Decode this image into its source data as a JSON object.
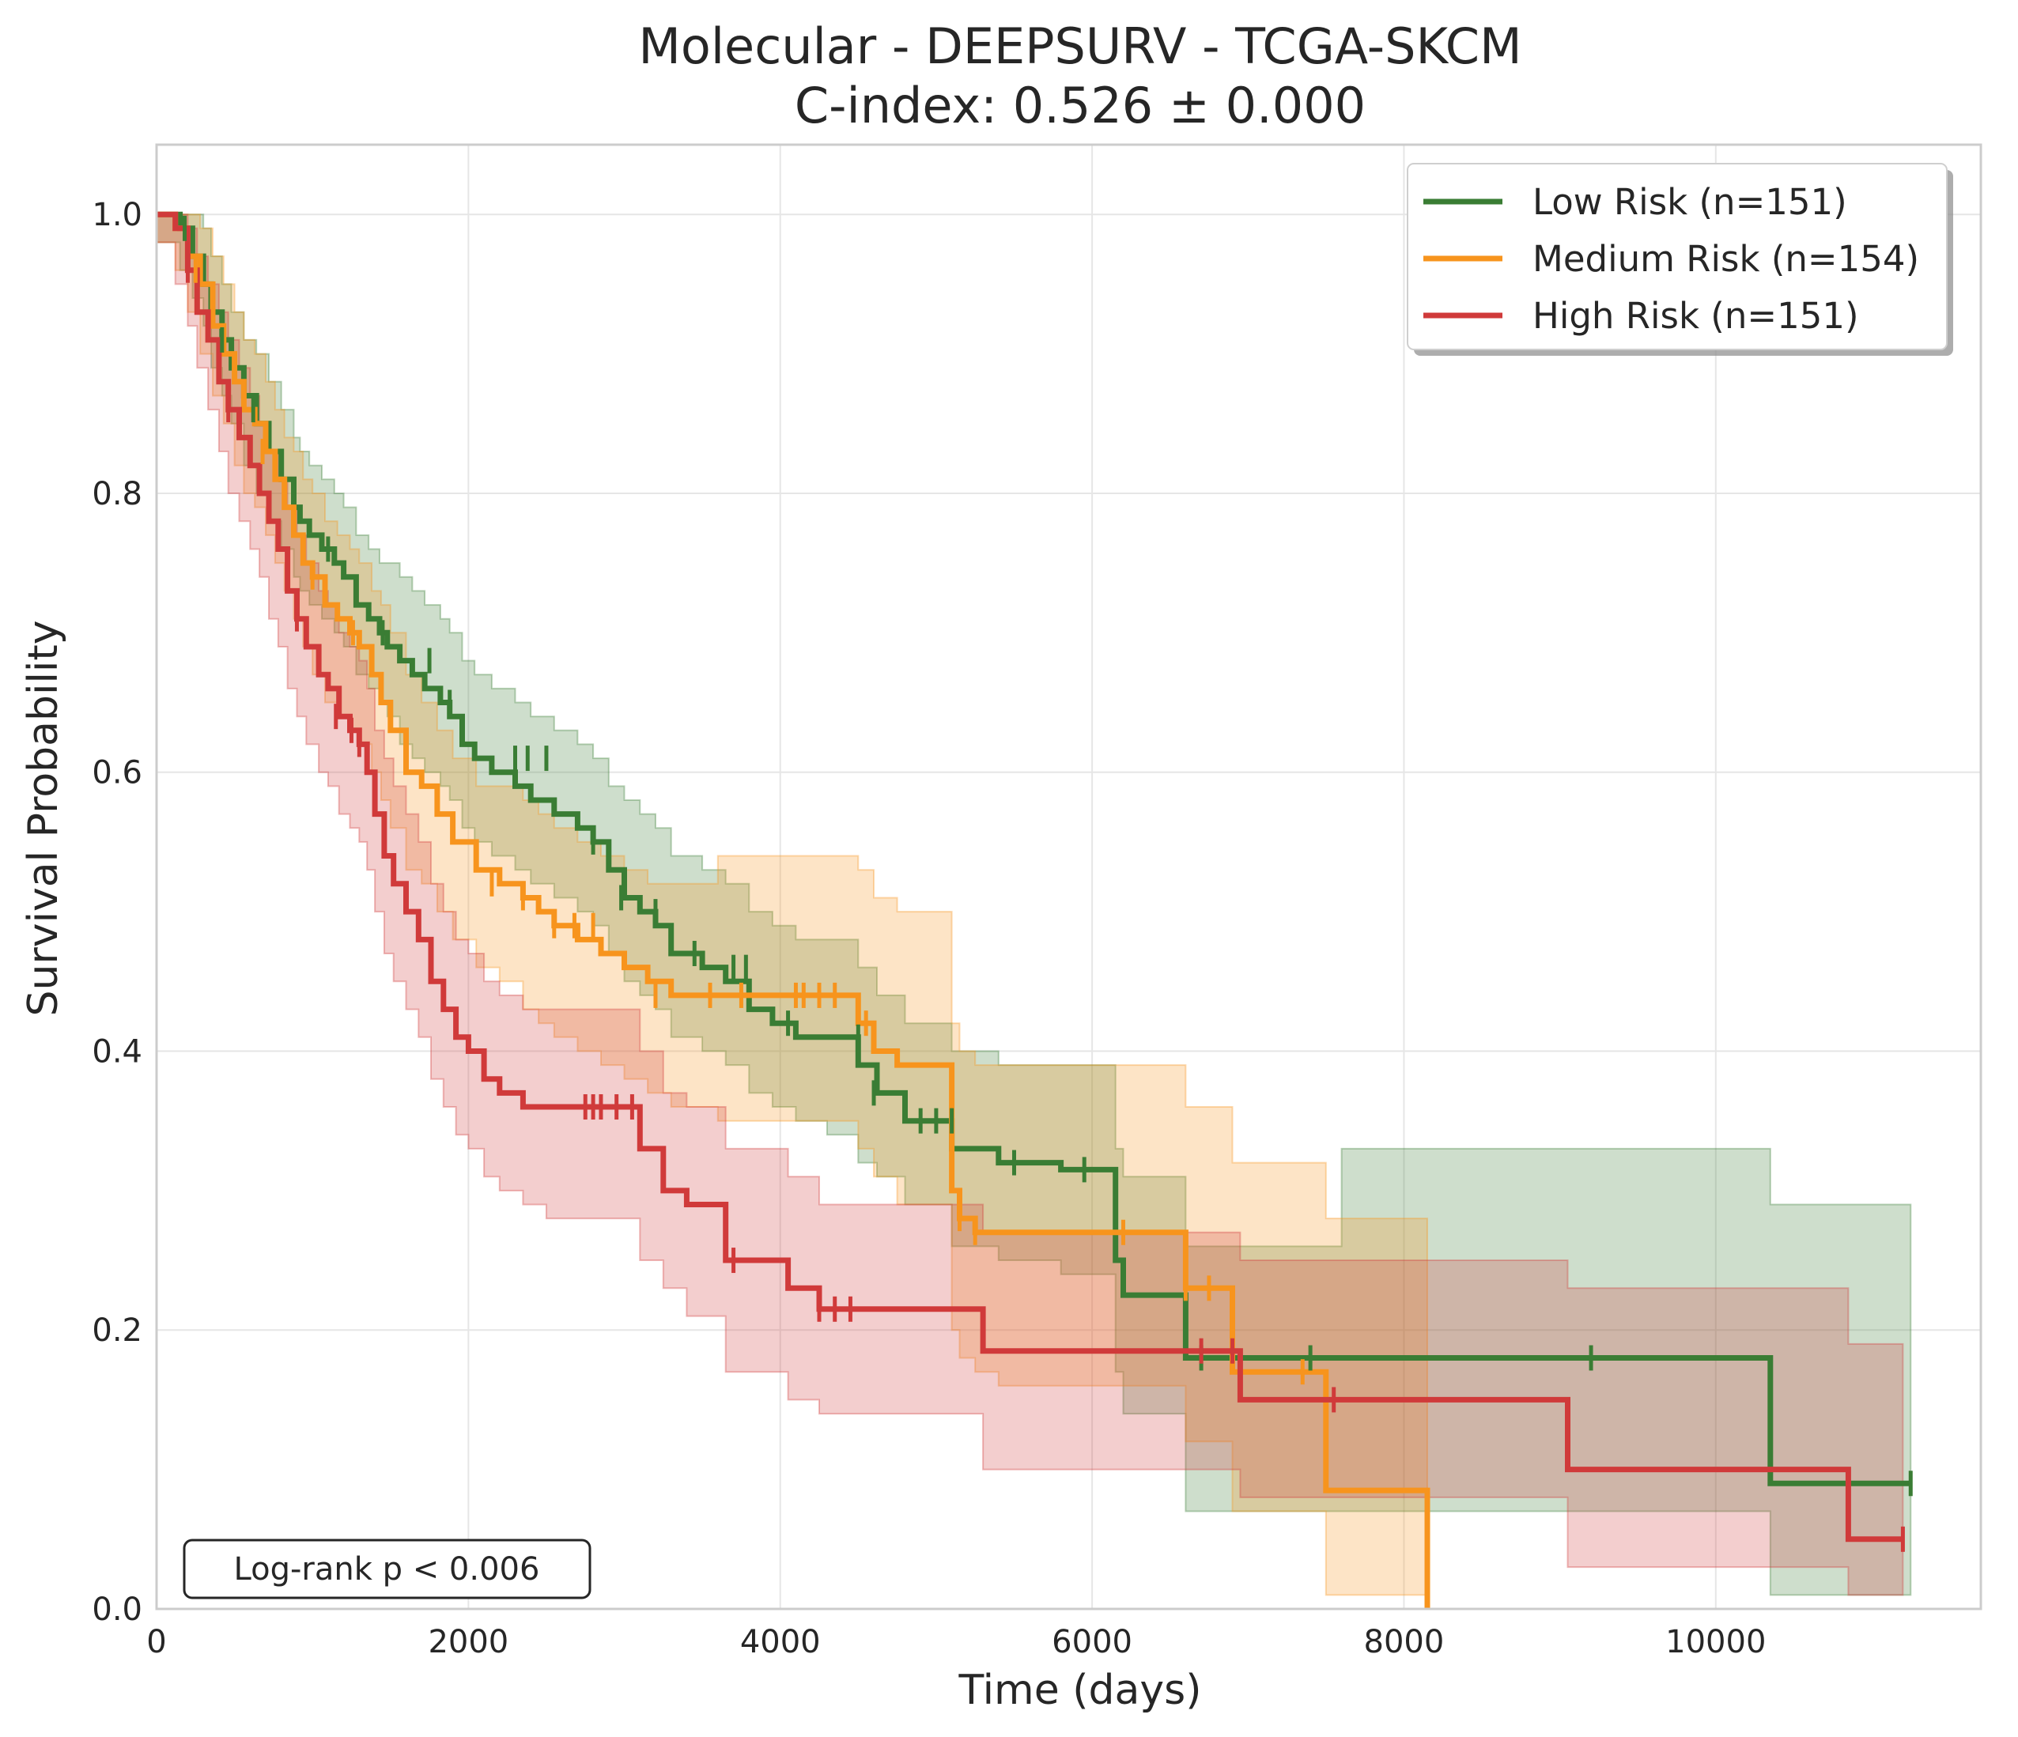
{
  "chart_data": {
    "type": "line",
    "title": "Molecular - DEEPSURV - TCGA-SKCM",
    "subtitle": "C-index: 0.526 ± 0.000",
    "xlabel": "Time (days)",
    "ylabel": "Survival Probability",
    "xlim": [
      0,
      11700
    ],
    "ylim": [
      0,
      1.05
    ],
    "x_ticks": [
      0,
      2000,
      4000,
      6000,
      8000,
      10000
    ],
    "y_ticks": [
      0.0,
      0.2,
      0.4,
      0.6,
      0.8,
      1.0
    ],
    "x_tick_labels": [
      "0",
      "2000",
      "4000",
      "6000",
      "8000",
      "10000"
    ],
    "y_tick_labels": [
      "0.0",
      "0.2",
      "0.4",
      "0.6",
      "0.8",
      "1.0"
    ],
    "grid": true,
    "legend_position": "top-right",
    "annotation": "Log-rank p < 0.006",
    "series": [
      {
        "name": "Low Risk (n=151)",
        "color": "#3a7d34",
        "step_x": [
          0,
          150,
          230,
          300,
          350,
          420,
          480,
          560,
          640,
          720,
          800,
          880,
          920,
          980,
          1060,
          1140,
          1200,
          1280,
          1360,
          1430,
          1480,
          1560,
          1640,
          1720,
          1820,
          1880,
          1960,
          2040,
          2150,
          2300,
          2400,
          2550,
          2700,
          2800,
          2900,
          3000,
          3100,
          3200,
          3300,
          3500,
          3650,
          3800,
          3950,
          4100,
          4300,
          4500,
          4620,
          4800,
          4950,
          5100,
          5400,
          5800,
          6150,
          6200,
          6500,
          6600,
          6900,
          7600,
          8000,
          10350,
          11250
        ],
        "step_y": [
          1.0,
          0.99,
          0.97,
          0.95,
          0.93,
          0.91,
          0.89,
          0.87,
          0.85,
          0.83,
          0.81,
          0.79,
          0.78,
          0.77,
          0.76,
          0.75,
          0.74,
          0.72,
          0.71,
          0.7,
          0.69,
          0.68,
          0.67,
          0.66,
          0.65,
          0.64,
          0.62,
          0.61,
          0.6,
          0.59,
          0.58,
          0.57,
          0.56,
          0.55,
          0.53,
          0.51,
          0.5,
          0.49,
          0.47,
          0.46,
          0.45,
          0.43,
          0.42,
          0.41,
          0.41,
          0.39,
          0.37,
          0.35,
          0.35,
          0.33,
          0.32,
          0.315,
          0.25,
          0.225,
          0.225,
          0.18,
          0.18,
          0.18,
          0.18,
          0.09,
          0.09
        ],
        "ci_upper": [
          1.0,
          1.0,
          1.0,
          0.99,
          0.97,
          0.95,
          0.93,
          0.91,
          0.9,
          0.88,
          0.86,
          0.84,
          0.83,
          0.82,
          0.81,
          0.8,
          0.79,
          0.77,
          0.76,
          0.75,
          0.75,
          0.74,
          0.73,
          0.72,
          0.71,
          0.7,
          0.68,
          0.67,
          0.66,
          0.65,
          0.64,
          0.63,
          0.62,
          0.61,
          0.59,
          0.58,
          0.57,
          0.56,
          0.54,
          0.53,
          0.52,
          0.5,
          0.49,
          0.48,
          0.48,
          0.46,
          0.44,
          0.42,
          0.42,
          0.4,
          0.39,
          0.39,
          0.33,
          0.31,
          0.31,
          0.26,
          0.26,
          0.33,
          0.33,
          0.29,
          0.29
        ],
        "ci_lower": [
          0.98,
          0.96,
          0.94,
          0.92,
          0.89,
          0.87,
          0.85,
          0.82,
          0.8,
          0.78,
          0.76,
          0.74,
          0.73,
          0.72,
          0.71,
          0.7,
          0.69,
          0.67,
          0.66,
          0.65,
          0.64,
          0.62,
          0.61,
          0.6,
          0.59,
          0.58,
          0.56,
          0.55,
          0.54,
          0.53,
          0.52,
          0.51,
          0.5,
          0.49,
          0.47,
          0.45,
          0.44,
          0.43,
          0.41,
          0.4,
          0.39,
          0.37,
          0.36,
          0.35,
          0.34,
          0.32,
          0.31,
          0.29,
          0.29,
          0.26,
          0.25,
          0.24,
          0.17,
          0.14,
          0.14,
          0.07,
          0.07,
          0.07,
          0.07,
          0.01,
          0.01
        ],
        "censor_x": [
          180,
          420,
          620,
          1100,
          1450,
          1750,
          1880,
          2300,
          2380,
          2500,
          2800,
          2980,
          3200,
          3450,
          3700,
          3780,
          4050,
          4500,
          4600,
          4900,
          5000,
          5100,
          5500,
          5950,
          6700,
          7400,
          9200,
          11250
        ],
        "censor_y": [
          0.99,
          0.91,
          0.86,
          0.76,
          0.7,
          0.68,
          0.65,
          0.61,
          0.61,
          0.61,
          0.55,
          0.51,
          0.5,
          0.47,
          0.46,
          0.46,
          0.42,
          0.41,
          0.37,
          0.35,
          0.35,
          0.35,
          0.32,
          0.315,
          0.18,
          0.18,
          0.18,
          0.09
        ]
      },
      {
        "name": "Medium Risk (n=154)",
        "color": "#f7941d",
        "step_x": [
          0,
          120,
          200,
          280,
          360,
          430,
          500,
          560,
          630,
          700,
          760,
          820,
          880,
          940,
          1000,
          1080,
          1160,
          1240,
          1300,
          1380,
          1440,
          1500,
          1600,
          1700,
          1800,
          1900,
          2050,
          2200,
          2350,
          2450,
          2550,
          2700,
          2850,
          3000,
          3150,
          3300,
          3600,
          4500,
          4600,
          4750,
          5100,
          5150,
          5250,
          5400,
          6600,
          6900,
          7500,
          8150
        ],
        "step_y": [
          1.0,
          0.99,
          0.97,
          0.95,
          0.92,
          0.9,
          0.88,
          0.86,
          0.85,
          0.83,
          0.81,
          0.79,
          0.77,
          0.75,
          0.74,
          0.72,
          0.71,
          0.7,
          0.69,
          0.67,
          0.65,
          0.63,
          0.6,
          0.59,
          0.57,
          0.55,
          0.53,
          0.52,
          0.51,
          0.5,
          0.49,
          0.48,
          0.47,
          0.46,
          0.45,
          0.44,
          0.44,
          0.42,
          0.4,
          0.39,
          0.3,
          0.28,
          0.27,
          0.27,
          0.23,
          0.17,
          0.085,
          0.0
        ],
        "ci_upper": [
          1.0,
          1.0,
          1.0,
          0.99,
          0.97,
          0.95,
          0.93,
          0.91,
          0.9,
          0.88,
          0.86,
          0.84,
          0.83,
          0.81,
          0.8,
          0.78,
          0.77,
          0.76,
          0.75,
          0.73,
          0.72,
          0.7,
          0.67,
          0.65,
          0.63,
          0.61,
          0.59,
          0.59,
          0.58,
          0.57,
          0.56,
          0.55,
          0.54,
          0.53,
          0.52,
          0.52,
          0.54,
          0.53,
          0.51,
          0.5,
          0.42,
          0.4,
          0.39,
          0.39,
          0.36,
          0.32,
          0.28,
          0.0
        ],
        "ci_lower": [
          0.98,
          0.96,
          0.93,
          0.9,
          0.87,
          0.85,
          0.82,
          0.8,
          0.79,
          0.77,
          0.75,
          0.73,
          0.71,
          0.69,
          0.67,
          0.65,
          0.64,
          0.63,
          0.62,
          0.6,
          0.58,
          0.56,
          0.53,
          0.52,
          0.5,
          0.48,
          0.46,
          0.45,
          0.43,
          0.42,
          0.41,
          0.4,
          0.39,
          0.38,
          0.37,
          0.36,
          0.35,
          0.33,
          0.31,
          0.29,
          0.2,
          0.18,
          0.17,
          0.16,
          0.12,
          0.07,
          0.01,
          0.0
        ],
        "censor_x": [
          250,
          680,
          1000,
          1260,
          2150,
          2350,
          2550,
          2680,
          2800,
          3200,
          3550,
          3750,
          4100,
          4150,
          4250,
          4350,
          4550,
          5150,
          5250,
          6200,
          6600,
          6750,
          7350
        ],
        "censor_y": [
          0.96,
          0.83,
          0.74,
          0.7,
          0.52,
          0.51,
          0.49,
          0.49,
          0.49,
          0.44,
          0.44,
          0.44,
          0.44,
          0.44,
          0.44,
          0.44,
          0.42,
          0.28,
          0.27,
          0.27,
          0.23,
          0.23,
          0.17
        ]
      },
      {
        "name": "High Risk (n=151)",
        "color": "#d03a3a",
        "step_x": [
          0,
          120,
          200,
          260,
          330,
          400,
          460,
          530,
          600,
          660,
          720,
          780,
          840,
          900,
          960,
          1040,
          1100,
          1170,
          1240,
          1300,
          1350,
          1400,
          1460,
          1520,
          1600,
          1680,
          1760,
          1840,
          1920,
          2000,
          2100,
          2200,
          2350,
          2500,
          3100,
          3250,
          3400,
          3650,
          4050,
          4250,
          5300,
          6950,
          9050,
          10850,
          11200
        ],
        "step_y": [
          1.0,
          0.99,
          0.96,
          0.93,
          0.91,
          0.88,
          0.86,
          0.84,
          0.82,
          0.8,
          0.78,
          0.76,
          0.73,
          0.71,
          0.69,
          0.67,
          0.66,
          0.64,
          0.63,
          0.62,
          0.6,
          0.57,
          0.54,
          0.52,
          0.5,
          0.48,
          0.45,
          0.43,
          0.41,
          0.4,
          0.38,
          0.37,
          0.36,
          0.36,
          0.33,
          0.3,
          0.29,
          0.25,
          0.23,
          0.215,
          0.185,
          0.15,
          0.1,
          0.05,
          0.05
        ],
        "ci_upper": [
          1.0,
          1.0,
          0.99,
          0.97,
          0.95,
          0.93,
          0.91,
          0.89,
          0.87,
          0.85,
          0.83,
          0.81,
          0.79,
          0.77,
          0.75,
          0.73,
          0.72,
          0.7,
          0.69,
          0.68,
          0.66,
          0.63,
          0.61,
          0.59,
          0.57,
          0.55,
          0.52,
          0.5,
          0.48,
          0.47,
          0.45,
          0.44,
          0.43,
          0.43,
          0.4,
          0.37,
          0.36,
          0.33,
          0.31,
          0.29,
          0.27,
          0.25,
          0.23,
          0.19,
          0.19
        ],
        "ci_lower": [
          0.98,
          0.95,
          0.92,
          0.89,
          0.86,
          0.83,
          0.8,
          0.78,
          0.76,
          0.74,
          0.71,
          0.69,
          0.66,
          0.64,
          0.62,
          0.6,
          0.59,
          0.57,
          0.56,
          0.55,
          0.53,
          0.5,
          0.47,
          0.45,
          0.43,
          0.41,
          0.38,
          0.36,
          0.34,
          0.33,
          0.31,
          0.3,
          0.29,
          0.28,
          0.25,
          0.23,
          0.21,
          0.17,
          0.15,
          0.14,
          0.1,
          0.08,
          0.03,
          0.01,
          0.01
        ],
        "censor_x": [
          200,
          460,
          900,
          1150,
          1250,
          1300,
          2750,
          2800,
          2850,
          2950,
          3050,
          3700,
          4250,
          4350,
          4450,
          6700,
          6900,
          7550,
          11200
        ],
        "censor_y": [
          0.96,
          0.86,
          0.71,
          0.64,
          0.63,
          0.62,
          0.36,
          0.36,
          0.36,
          0.36,
          0.36,
          0.25,
          0.215,
          0.215,
          0.215,
          0.185,
          0.185,
          0.15,
          0.05
        ]
      }
    ]
  }
}
